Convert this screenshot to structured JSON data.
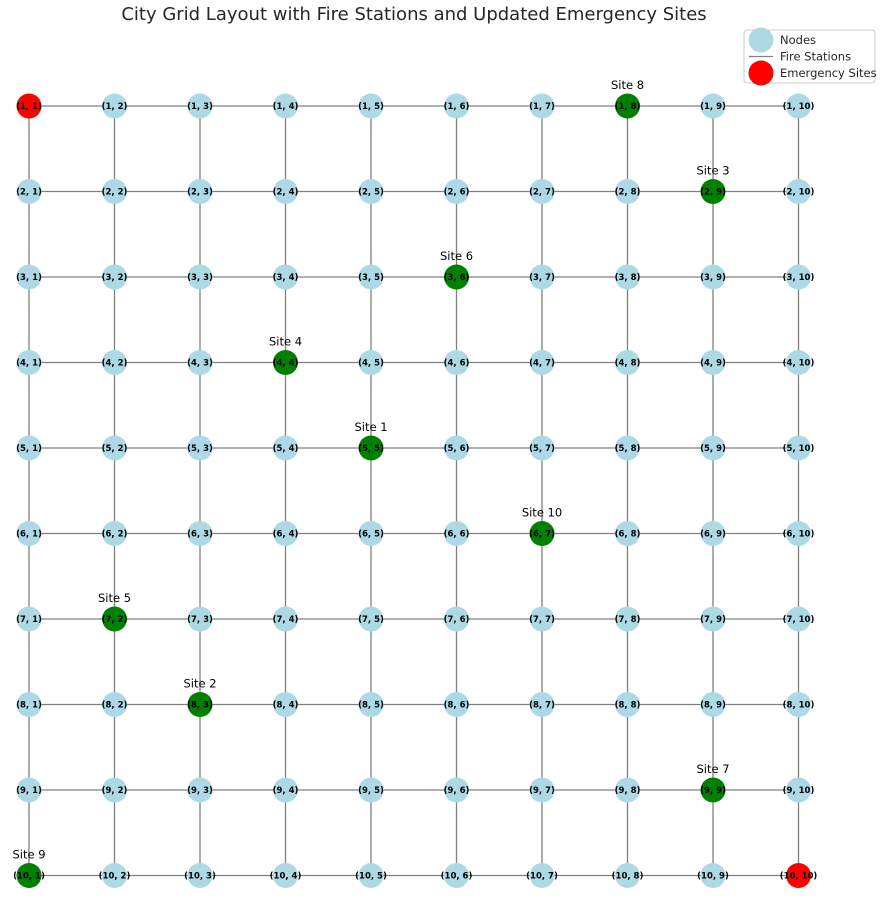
{
  "title": "City Grid Layout with Fire Stations and Updated Emergency Sites",
  "colors": {
    "node": "#add8e6",
    "fire_station": "#008000",
    "emergency_site": "#ff0000",
    "edge": "#808080",
    "legend_border": "#cccccc"
  },
  "legend": {
    "items": [
      {
        "label": "Nodes",
        "symbol": "node-circle"
      },
      {
        "label": "Fire Stations",
        "symbol": "line"
      },
      {
        "label": "Emergency Sites",
        "symbol": "emergency-circle"
      }
    ]
  },
  "grid": {
    "rows": 10,
    "cols": 10
  },
  "fire_stations": [
    {
      "label": "Site 1",
      "node": [
        5,
        5
      ]
    },
    {
      "label": "Site 2",
      "node": [
        8,
        3
      ]
    },
    {
      "label": "Site 3",
      "node": [
        2,
        9
      ]
    },
    {
      "label": "Site 4",
      "node": [
        4,
        4
      ]
    },
    {
      "label": "Site 5",
      "node": [
        7,
        2
      ]
    },
    {
      "label": "Site 6",
      "node": [
        3,
        6
      ]
    },
    {
      "label": "Site 7",
      "node": [
        9,
        9
      ]
    },
    {
      "label": "Site 8",
      "node": [
        1,
        8
      ]
    },
    {
      "label": "Site 9",
      "node": [
        10,
        1
      ]
    },
    {
      "label": "Site 10",
      "node": [
        6,
        7
      ]
    }
  ],
  "emergency_sites": [
    {
      "node": [
        1,
        1
      ]
    },
    {
      "node": [
        10,
        10
      ]
    }
  ]
}
